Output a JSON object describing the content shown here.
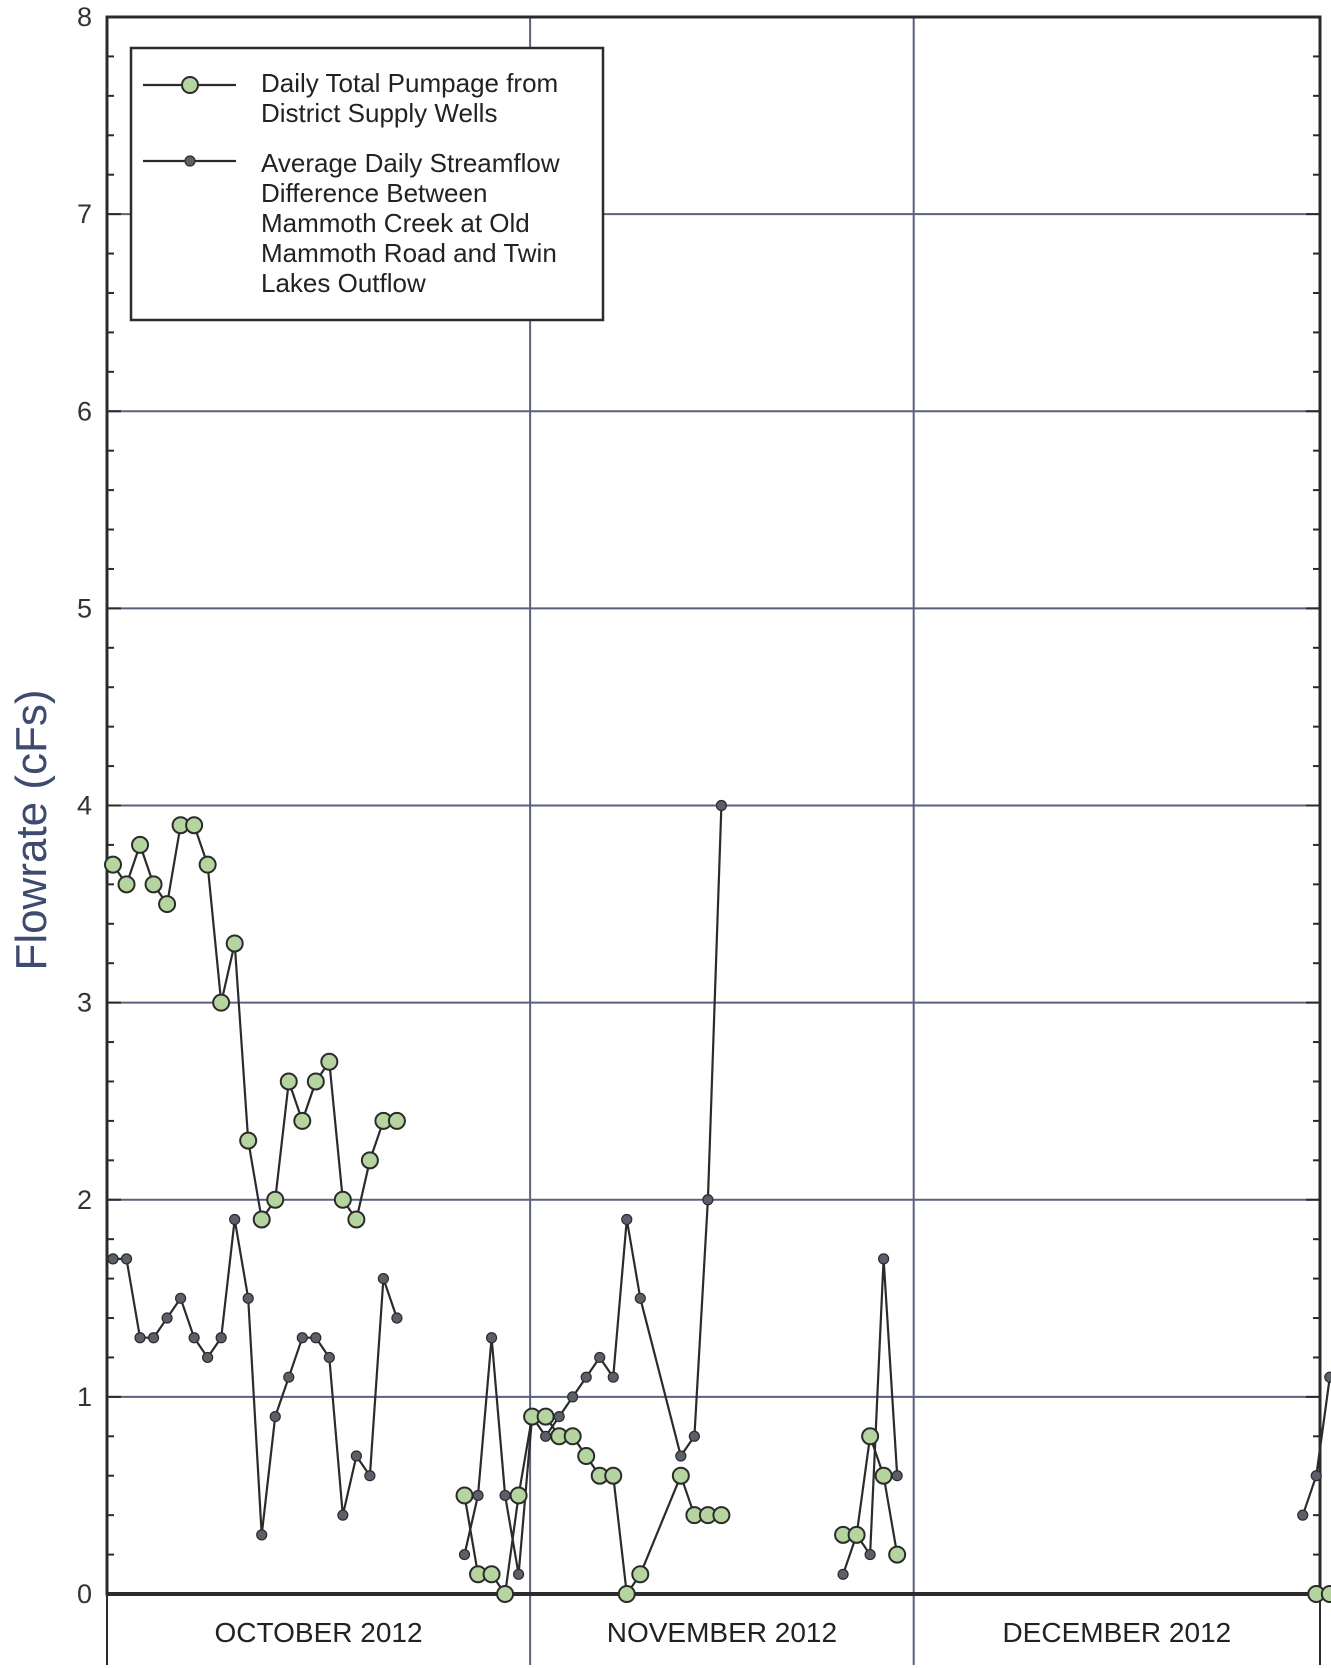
{
  "colors": {
    "grid": "#5a6080",
    "frame": "#2b2b2b",
    "line": "#2b2b2b",
    "pump_fill": "#b5d4a0",
    "stream_fill": "#5a5f6a"
  },
  "chart_data": {
    "type": "line",
    "ylabel": "Flowrate (cFs)",
    "ylim": [
      0,
      8
    ],
    "yticks": [
      "0",
      "1",
      "2",
      "3",
      "4",
      "5",
      "6",
      "7",
      "8"
    ],
    "xlim": [
      1,
      92
    ],
    "months": [
      "OCTOBER 2012",
      "NOVEMBER 2012",
      "DECEMBER 2012"
    ],
    "grid": true,
    "legend_position": "top-left",
    "series": [
      {
        "name": "Daily Total Pumpage from District Supply Wells",
        "legend_lines": [
          "Daily Total Pumpage from",
          "District Supply Wells"
        ],
        "marker": "large-circle",
        "segments": [
          [
            [
              1,
              3.7
            ],
            [
              2,
              3.6
            ],
            [
              3,
              3.8
            ],
            [
              4,
              3.6
            ],
            [
              5,
              3.5
            ],
            [
              6,
              3.9
            ],
            [
              7,
              3.9
            ],
            [
              8,
              3.7
            ],
            [
              9,
              3.0
            ],
            [
              10,
              3.3
            ],
            [
              11,
              2.3
            ],
            [
              12,
              1.9
            ],
            [
              13,
              2.0
            ],
            [
              14,
              2.6
            ],
            [
              15,
              2.4
            ],
            [
              16,
              2.6
            ],
            [
              17,
              2.7
            ],
            [
              18,
              2.0
            ],
            [
              19,
              1.9
            ],
            [
              20,
              2.2
            ],
            [
              21,
              2.4
            ],
            [
              22,
              2.4
            ]
          ],
          [
            [
              27,
              0.5
            ],
            [
              28,
              0.1
            ],
            [
              29,
              0.1
            ],
            [
              30,
              0.0
            ],
            [
              31,
              0.5
            ],
            [
              32,
              0.9
            ],
            [
              33,
              0.9
            ],
            [
              34,
              0.8
            ],
            [
              35,
              0.8
            ],
            [
              36,
              0.7
            ],
            [
              37,
              0.6
            ],
            [
              38,
              0.6
            ],
            [
              39,
              0.0
            ],
            [
              40,
              0.1
            ],
            [
              43,
              0.6
            ],
            [
              44,
              0.4
            ],
            [
              45,
              0.4
            ],
            [
              46,
              0.4
            ]
          ],
          [
            [
              55,
              0.3
            ],
            [
              56,
              0.3
            ],
            [
              57,
              0.8
            ],
            [
              58,
              0.6
            ],
            [
              59,
              0.2
            ]
          ],
          [
            [
              90,
              0.0
            ],
            [
              91,
              0.0
            ],
            [
              92,
              0.0
            ]
          ]
        ]
      },
      {
        "name": "Average Daily Streamflow Difference Between Mammoth Creek at Old Mammoth Road and Twin Lakes Outflow",
        "legend_lines": [
          "Average Daily Streamflow",
          "Difference Between",
          "Mammoth Creek at Old",
          "Mammoth Road and Twin",
          "Lakes Outflow"
        ],
        "marker": "small-dot",
        "segments": [
          [
            [
              1,
              1.7
            ],
            [
              2,
              1.7
            ],
            [
              3,
              1.3
            ],
            [
              4,
              1.3
            ],
            [
              5,
              1.4
            ],
            [
              6,
              1.5
            ],
            [
              7,
              1.3
            ],
            [
              8,
              1.2
            ],
            [
              9,
              1.3
            ],
            [
              10,
              1.9
            ],
            [
              11,
              1.5
            ],
            [
              12,
              0.3
            ],
            [
              13,
              0.9
            ],
            [
              14,
              1.1
            ],
            [
              15,
              1.3
            ],
            [
              16,
              1.3
            ],
            [
              17,
              1.2
            ],
            [
              18,
              0.4
            ],
            [
              19,
              0.7
            ],
            [
              20,
              0.6
            ],
            [
              21,
              1.6
            ],
            [
              22,
              1.4
            ]
          ],
          [
            [
              27,
              0.2
            ],
            [
              28,
              0.5
            ],
            [
              29,
              1.3
            ],
            [
              30,
              0.5
            ],
            [
              31,
              0.1
            ],
            [
              32,
              0.9
            ],
            [
              33,
              0.8
            ],
            [
              34,
              0.9
            ],
            [
              35,
              1.0
            ],
            [
              36,
              1.1
            ],
            [
              37,
              1.2
            ],
            [
              38,
              1.1
            ],
            [
              39,
              1.9
            ],
            [
              40,
              1.5
            ],
            [
              43,
              0.7
            ],
            [
              44,
              0.8
            ],
            [
              45,
              2.0
            ],
            [
              46,
              4.0
            ]
          ],
          [
            [
              55,
              0.1
            ],
            [
              56,
              0.3
            ],
            [
              57,
              0.2
            ],
            [
              58,
              1.7
            ],
            [
              59,
              0.6
            ]
          ],
          [
            [
              89,
              0.4
            ],
            [
              90,
              0.6
            ],
            [
              91,
              1.1
            ]
          ]
        ]
      }
    ]
  }
}
